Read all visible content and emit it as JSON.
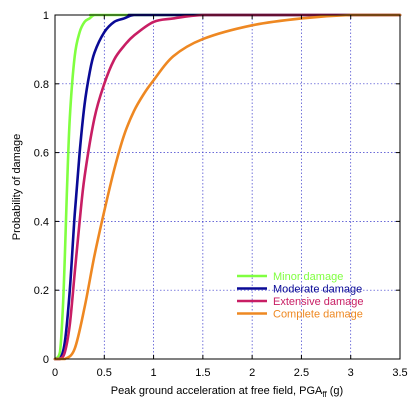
{
  "chart_data": {
    "type": "line",
    "title": "",
    "xlabel": "Peak ground acceleration at free field, PGA",
    "xlabel_subscript": "ff",
    "xlabel_suffix": " (g)",
    "ylabel": "Probability of damage",
    "xlim": [
      0,
      3.5
    ],
    "ylim": [
      0,
      1
    ],
    "xticks": [
      "0",
      "0.5",
      "1",
      "1.5",
      "2",
      "2.5",
      "3",
      "3.5"
    ],
    "yticks": [
      "0",
      "0.2",
      "0.4",
      "0.6",
      "0.8",
      "1"
    ],
    "grid": true,
    "legend_position": "lower-right",
    "series": [
      {
        "name": "Minor damage",
        "color": "#80ff40",
        "x": [
          0,
          0.05,
          0.08,
          0.1,
          0.12,
          0.15,
          0.2,
          0.25,
          0.3,
          0.35,
          0.4,
          0.5,
          0.6,
          3.5
        ],
        "y": [
          0,
          0.02,
          0.15,
          0.3,
          0.48,
          0.7,
          0.88,
          0.95,
          0.98,
          0.99,
          1.0,
          1.0,
          1.0,
          1.0
        ]
      },
      {
        "name": "Moderate damage",
        "color": "#0a0a96",
        "x": [
          0,
          0.05,
          0.1,
          0.15,
          0.2,
          0.25,
          0.3,
          0.35,
          0.4,
          0.5,
          0.6,
          0.7,
          0.8,
          1.0,
          3.5
        ],
        "y": [
          0,
          0.0,
          0.05,
          0.2,
          0.42,
          0.6,
          0.74,
          0.83,
          0.89,
          0.95,
          0.98,
          0.99,
          1.0,
          1.0,
          1.0
        ]
      },
      {
        "name": "Extensive damage",
        "color": "#c81e64",
        "x": [
          0,
          0.05,
          0.1,
          0.15,
          0.2,
          0.25,
          0.3,
          0.4,
          0.5,
          0.6,
          0.7,
          0.8,
          1.0,
          1.2,
          1.5,
          2.0,
          3.5
        ],
        "y": [
          0,
          0.0,
          0.02,
          0.1,
          0.25,
          0.4,
          0.53,
          0.7,
          0.8,
          0.87,
          0.91,
          0.94,
          0.98,
          0.99,
          1.0,
          1.0,
          1.0
        ]
      },
      {
        "name": "Complete damage",
        "color": "#ee8822",
        "x": [
          0,
          0.1,
          0.2,
          0.3,
          0.4,
          0.5,
          0.6,
          0.7,
          0.8,
          0.9,
          1.0,
          1.2,
          1.5,
          2.0,
          2.5,
          3.0,
          3.5
        ],
        "y": [
          0,
          0.0,
          0.03,
          0.15,
          0.3,
          0.43,
          0.55,
          0.65,
          0.72,
          0.77,
          0.81,
          0.88,
          0.93,
          0.97,
          0.99,
          1.0,
          1.0
        ]
      }
    ]
  }
}
